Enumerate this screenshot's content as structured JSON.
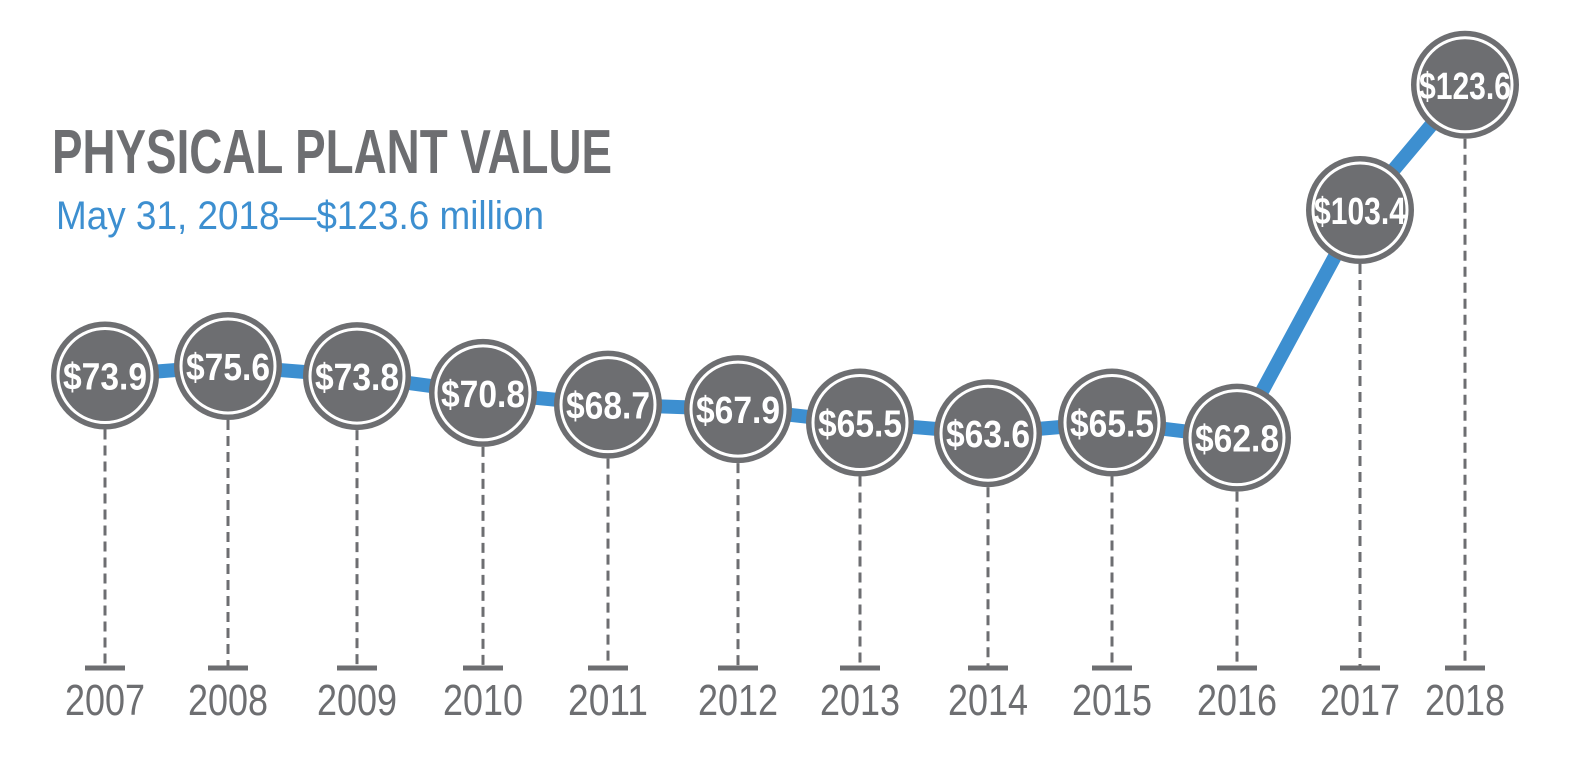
{
  "chart_data": {
    "type": "line",
    "title": "PHYSICAL PLANT VALUE",
    "subtitle": "May 31, 2018—$123.6 million",
    "categories": [
      "2007",
      "2008",
      "2009",
      "2010",
      "2011",
      "2012",
      "2013",
      "2014",
      "2015",
      "2016",
      "2017",
      "2018"
    ],
    "values": [
      73.9,
      75.6,
      73.8,
      70.8,
      68.7,
      67.9,
      65.5,
      63.6,
      65.5,
      62.8,
      103.4,
      123.6
    ],
    "data_labels": [
      "$73.9",
      "$75.6",
      "$73.8",
      "$70.8",
      "$68.7",
      "$67.9",
      "$65.5",
      "$63.6",
      "$65.5",
      "$62.8",
      "$103.4",
      "$123.6"
    ],
    "xlabel": "",
    "ylabel": "",
    "grid": false,
    "colors": {
      "line": "#3d8fd0",
      "bubble": "#6d6e71",
      "bubble_ring": "#ffffff",
      "stem": "#6d6e71",
      "title": "#6d6e71",
      "subtitle": "#3d8fd0",
      "year": "#6d6e71"
    }
  }
}
